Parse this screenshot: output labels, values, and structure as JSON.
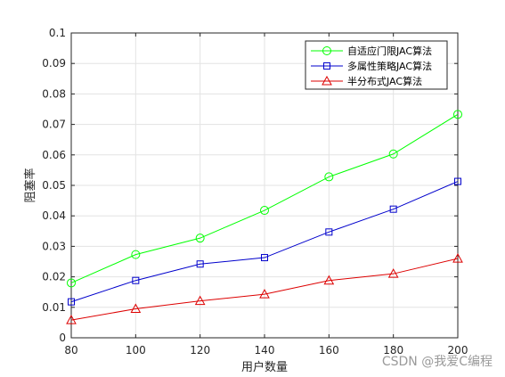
{
  "chart_data": {
    "type": "line",
    "xlabel": "用户数量",
    "ylabel": "阻塞率",
    "x": [
      80,
      100,
      120,
      140,
      160,
      180,
      200
    ],
    "xlim": [
      80,
      200
    ],
    "ylim": [
      0,
      0.1
    ],
    "x_ticks": [
      "80",
      "100",
      "120",
      "140",
      "160",
      "180",
      "200"
    ],
    "y_ticks": [
      "0",
      "0.01",
      "0.02",
      "0.03",
      "0.04",
      "0.05",
      "0.06",
      "0.07",
      "0.08",
      "0.09",
      "0.1"
    ],
    "grid": true,
    "legend_position": "top-right",
    "series": [
      {
        "name": "自适应门限JAC算法",
        "color": "#00ff00",
        "marker": "circle",
        "values": [
          0.018,
          0.0273,
          0.0327,
          0.0418,
          0.0528,
          0.0603,
          0.0733
        ]
      },
      {
        "name": "多属性策略JAC算法",
        "color": "#0000cc",
        "marker": "square",
        "values": [
          0.0118,
          0.0188,
          0.0242,
          0.0263,
          0.0347,
          0.0422,
          0.0513
        ]
      },
      {
        "name": "半分布式JAC算法",
        "color": "#dd0000",
        "marker": "triangle",
        "values": [
          0.0058,
          0.0095,
          0.0121,
          0.0143,
          0.0188,
          0.021,
          0.026
        ]
      }
    ]
  },
  "watermark": "CSDN @我爱C编程"
}
